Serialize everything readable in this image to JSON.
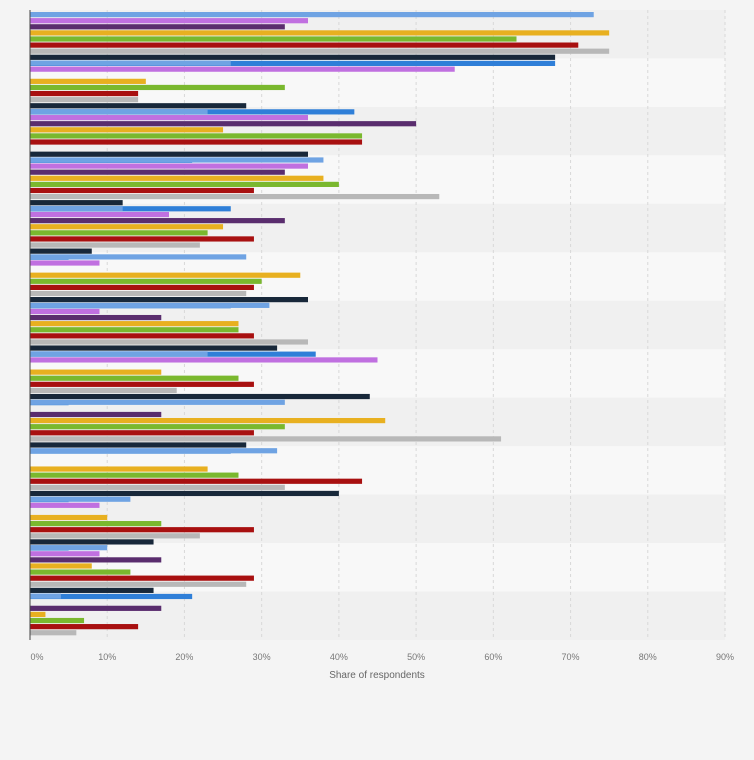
{
  "chart_data": {
    "type": "bar",
    "orientation": "horizontal",
    "xlabel": "Share of respondents",
    "ylabel": "",
    "xlim": [
      0,
      90
    ],
    "x_ticks": [
      0,
      10,
      20,
      30,
      40,
      50,
      60,
      70,
      80,
      90
    ],
    "tick_suffix": "%",
    "grid": true,
    "group_count": 13,
    "series": [
      {
        "color": "#6fa3e3",
        "values": [
          73,
          26,
          23,
          38,
          12,
          28,
          31,
          23,
          33,
          32,
          13,
          10,
          4
        ]
      },
      {
        "color": "#c070e0",
        "values": [
          36,
          55,
          36,
          36,
          18,
          9,
          9,
          45,
          0,
          0,
          9,
          9,
          0
        ]
      },
      {
        "color": "#5a2d6e",
        "values": [
          33,
          0,
          50,
          33,
          33,
          0,
          17,
          0,
          17,
          0,
          0,
          17,
          17
        ]
      },
      {
        "color": "#e8b020",
        "values": [
          75,
          15,
          25,
          38,
          25,
          35,
          27,
          17,
          46,
          23,
          10,
          8,
          2
        ]
      },
      {
        "color": "#7ab82e",
        "values": [
          63,
          33,
          43,
          40,
          23,
          30,
          27,
          27,
          33,
          27,
          17,
          13,
          7
        ]
      },
      {
        "color": "#a81010",
        "values": [
          71,
          14,
          43,
          29,
          29,
          29,
          29,
          29,
          29,
          43,
          29,
          29,
          14
        ]
      },
      {
        "color": "#b8b8b8",
        "values": [
          75,
          14,
          0,
          53,
          22,
          28,
          36,
          19,
          61,
          33,
          22,
          28,
          6
        ]
      },
      {
        "color": "#18283a",
        "values": [
          68,
          28,
          36,
          12,
          8,
          36,
          32,
          44,
          28,
          40,
          16,
          16,
          0
        ]
      },
      {
        "color": "#2f7fd8",
        "values": [
          68,
          42,
          21,
          26,
          5,
          26,
          37,
          5,
          26,
          5,
          5,
          21,
          0
        ]
      }
    ]
  }
}
